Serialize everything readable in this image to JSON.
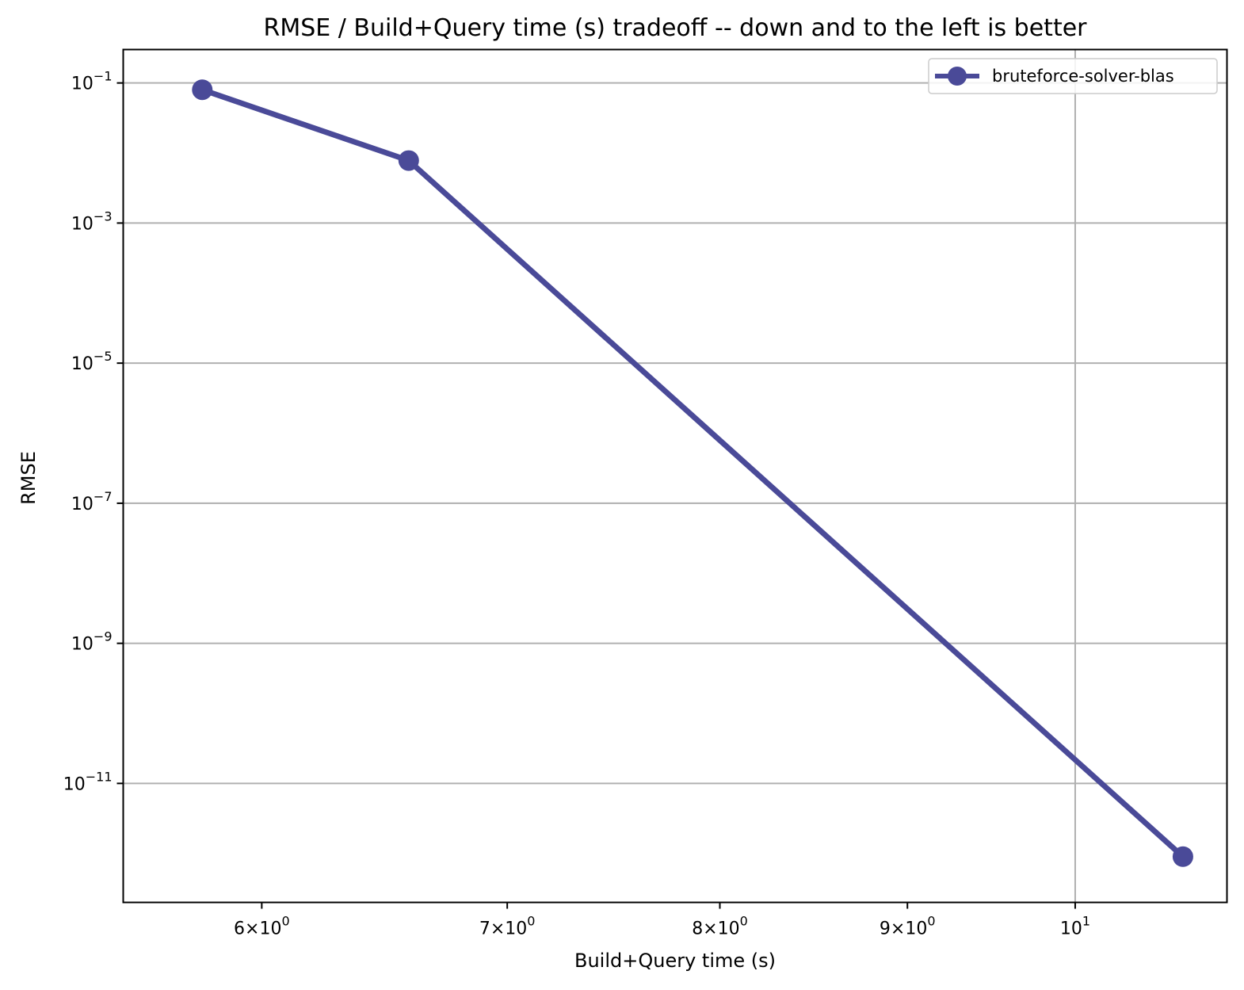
{
  "chart_data": {
    "type": "line",
    "title": "RMSE / Build+Query time (s) tradeoff -- down and to the left is better",
    "xlabel": "Build+Query time (s)",
    "ylabel": "RMSE",
    "xscale": "log",
    "yscale": "log",
    "xlim": [
      5.5,
      11.0
    ],
    "ylim": [
      2e-13,
      0.3
    ],
    "grid": true,
    "legend_position": "top-right",
    "x_ticks": [
      {
        "value": 6,
        "mantissa": "6",
        "exponent": "0"
      },
      {
        "value": 7,
        "mantissa": "7",
        "exponent": "0"
      },
      {
        "value": 8,
        "mantissa": "8",
        "exponent": "0"
      },
      {
        "value": 9,
        "mantissa": "9",
        "exponent": "0"
      },
      {
        "value": 10,
        "mantissa": "",
        "exponent": "1"
      }
    ],
    "y_ticks": [
      {
        "value": 0.1,
        "exponent": "−1"
      },
      {
        "value": 0.001,
        "exponent": "−3"
      },
      {
        "value": 1e-05,
        "exponent": "−5"
      },
      {
        "value": 1e-07,
        "exponent": "−7"
      },
      {
        "value": 1e-09,
        "exponent": "−9"
      },
      {
        "value": 1e-11,
        "exponent": "−11"
      }
    ],
    "series": [
      {
        "name": "bruteforce-solver-blas",
        "color": "#4a4a98",
        "marker": "circle",
        "x": [
          5.78,
          6.58,
          10.7
        ],
        "y": [
          0.08,
          0.0078,
          9e-13
        ]
      }
    ]
  }
}
